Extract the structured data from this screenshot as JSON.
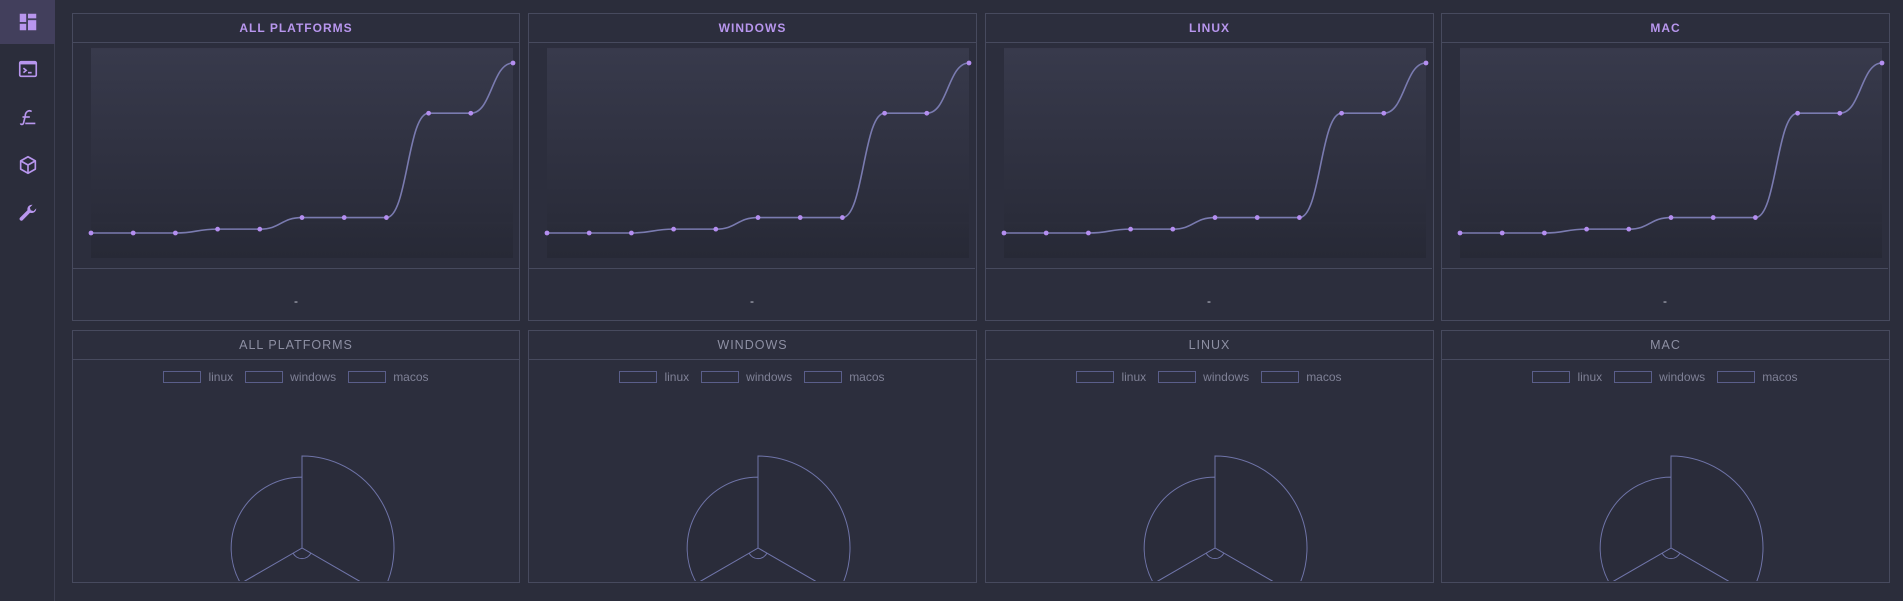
{
  "sidebar": {
    "items": [
      {
        "icon": "dashboard-icon",
        "active": true
      },
      {
        "icon": "terminal-icon",
        "active": false
      },
      {
        "icon": "script-icon",
        "active": false
      },
      {
        "icon": "package-icon",
        "active": false
      },
      {
        "icon": "wrench-icon",
        "active": false
      }
    ]
  },
  "line_panels": [
    {
      "title": "ALL PLATFORMS",
      "footer": "-"
    },
    {
      "title": "WINDOWS",
      "footer": "-"
    },
    {
      "title": "LINUX",
      "footer": "-"
    },
    {
      "title": "MAC",
      "footer": "-"
    }
  ],
  "pie_panels": [
    {
      "title": "ALL PLATFORMS",
      "legend": [
        "linux",
        "windows",
        "macos"
      ]
    },
    {
      "title": "WINDOWS",
      "legend": [
        "linux",
        "windows",
        "macos"
      ]
    },
    {
      "title": "LINUX",
      "legend": [
        "linux",
        "windows",
        "macos"
      ]
    },
    {
      "title": "MAC",
      "legend": [
        "linux",
        "windows",
        "macos"
      ]
    }
  ],
  "colors": {
    "accent": "#b896ee",
    "line": "#7a7bb0",
    "point": "#b48ef0",
    "pie_stroke": "#6f74a8"
  },
  "chart_data": [
    {
      "type": "line",
      "values": [
        0,
        0,
        0,
        1,
        1,
        4,
        4,
        4,
        31,
        31,
        44
      ]
    },
    {
      "type": "line",
      "values": [
        0,
        0,
        0,
        1,
        1,
        4,
        4,
        4,
        31,
        31,
        44
      ]
    },
    {
      "type": "line",
      "values": [
        0,
        0,
        0,
        1,
        1,
        4,
        4,
        4,
        31,
        31,
        44
      ]
    },
    {
      "type": "line",
      "values": [
        0,
        0,
        0,
        1,
        1,
        4,
        4,
        4,
        31,
        31,
        44
      ]
    },
    {
      "type": "pie",
      "series": [
        {
          "name": "linux",
          "value": 1
        },
        {
          "name": "windows",
          "value": 1
        },
        {
          "name": "macos",
          "value": 1
        }
      ],
      "radii": [
        1.0,
        0.77,
        0.77
      ]
    },
    {
      "type": "pie",
      "series": [
        {
          "name": "linux",
          "value": 1
        },
        {
          "name": "windows",
          "value": 1
        },
        {
          "name": "macos",
          "value": 1
        }
      ],
      "radii": [
        1.0,
        0.77,
        0.77
      ]
    },
    {
      "type": "pie",
      "series": [
        {
          "name": "linux",
          "value": 1
        },
        {
          "name": "windows",
          "value": 1
        },
        {
          "name": "macos",
          "value": 1
        }
      ],
      "radii": [
        1.0,
        0.77,
        0.77
      ]
    },
    {
      "type": "pie",
      "series": [
        {
          "name": "linux",
          "value": 1
        },
        {
          "name": "windows",
          "value": 1
        },
        {
          "name": "macos",
          "value": 1
        }
      ],
      "radii": [
        1.0,
        0.77,
        0.77
      ]
    }
  ]
}
